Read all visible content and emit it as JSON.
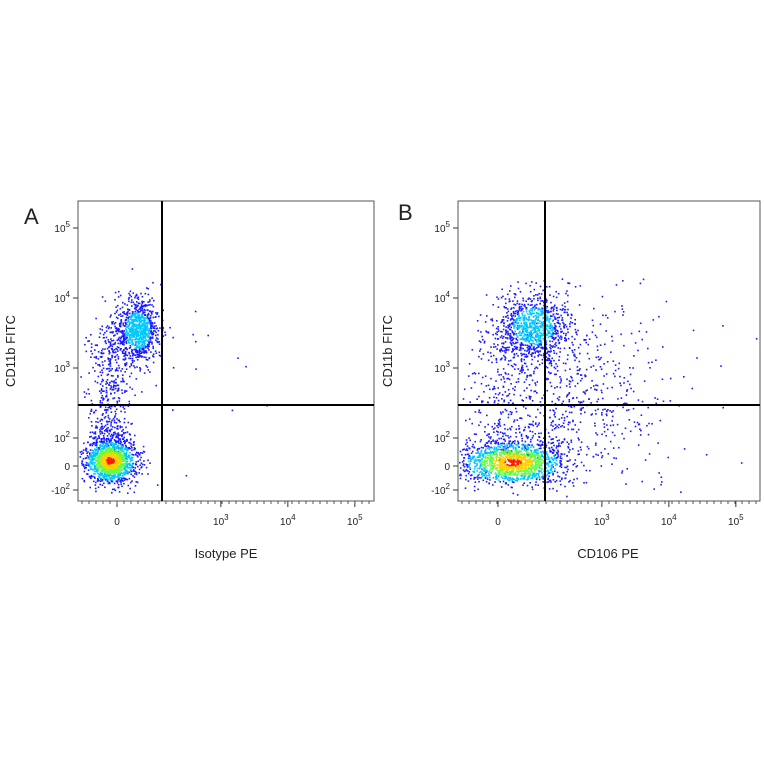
{
  "chart_data": [
    {
      "type": "scatter",
      "panel_label": "A",
      "xlabel": "Isotype PE",
      "ylabel": "CD11b FITC",
      "xscale": "biexponential",
      "yscale": "biexponential",
      "x_ticks": [
        "0",
        "10^3",
        "10^4",
        "10^5"
      ],
      "y_ticks": [
        "-10^2",
        "0",
        "10^2",
        "10^3",
        "10^4",
        "10^5"
      ],
      "quadrant_gate": {
        "x": 250,
        "y": 320
      },
      "populations": [
        {
          "name": "",
          "center": [
            30,
            3500
          ],
          "density": "medium"
        },
        {
          "name": "",
          "center": [
            -10,
            20
          ],
          "density": "high"
        }
      ]
    },
    {
      "type": "scatter",
      "panel_label": "B",
      "xlabel": "CD106 PE",
      "ylabel": "CD11b FITC",
      "xscale": "biexponential",
      "yscale": "biexponential",
      "x_ticks": [
        "0",
        "10^3",
        "10^4",
        "10^5"
      ],
      "y_ticks": [
        "-10^2",
        "0",
        "10^2",
        "10^3",
        "10^4",
        "10^5"
      ],
      "quadrant_gate": {
        "x": 250,
        "y": 320
      },
      "populations": [
        {
          "name": "",
          "center": [
            60,
            4000
          ],
          "density": "medium"
        },
        {
          "name": "",
          "center": [
            20,
            15
          ],
          "density": "high"
        }
      ]
    }
  ],
  "colors": {
    "density_low": "#1a1aff",
    "density_mid": "#00c8ff",
    "density_midhigh": "#5fff40",
    "density_high": "#ffd000",
    "density_peak": "#ff1a00",
    "gate_line": "#000000"
  }
}
